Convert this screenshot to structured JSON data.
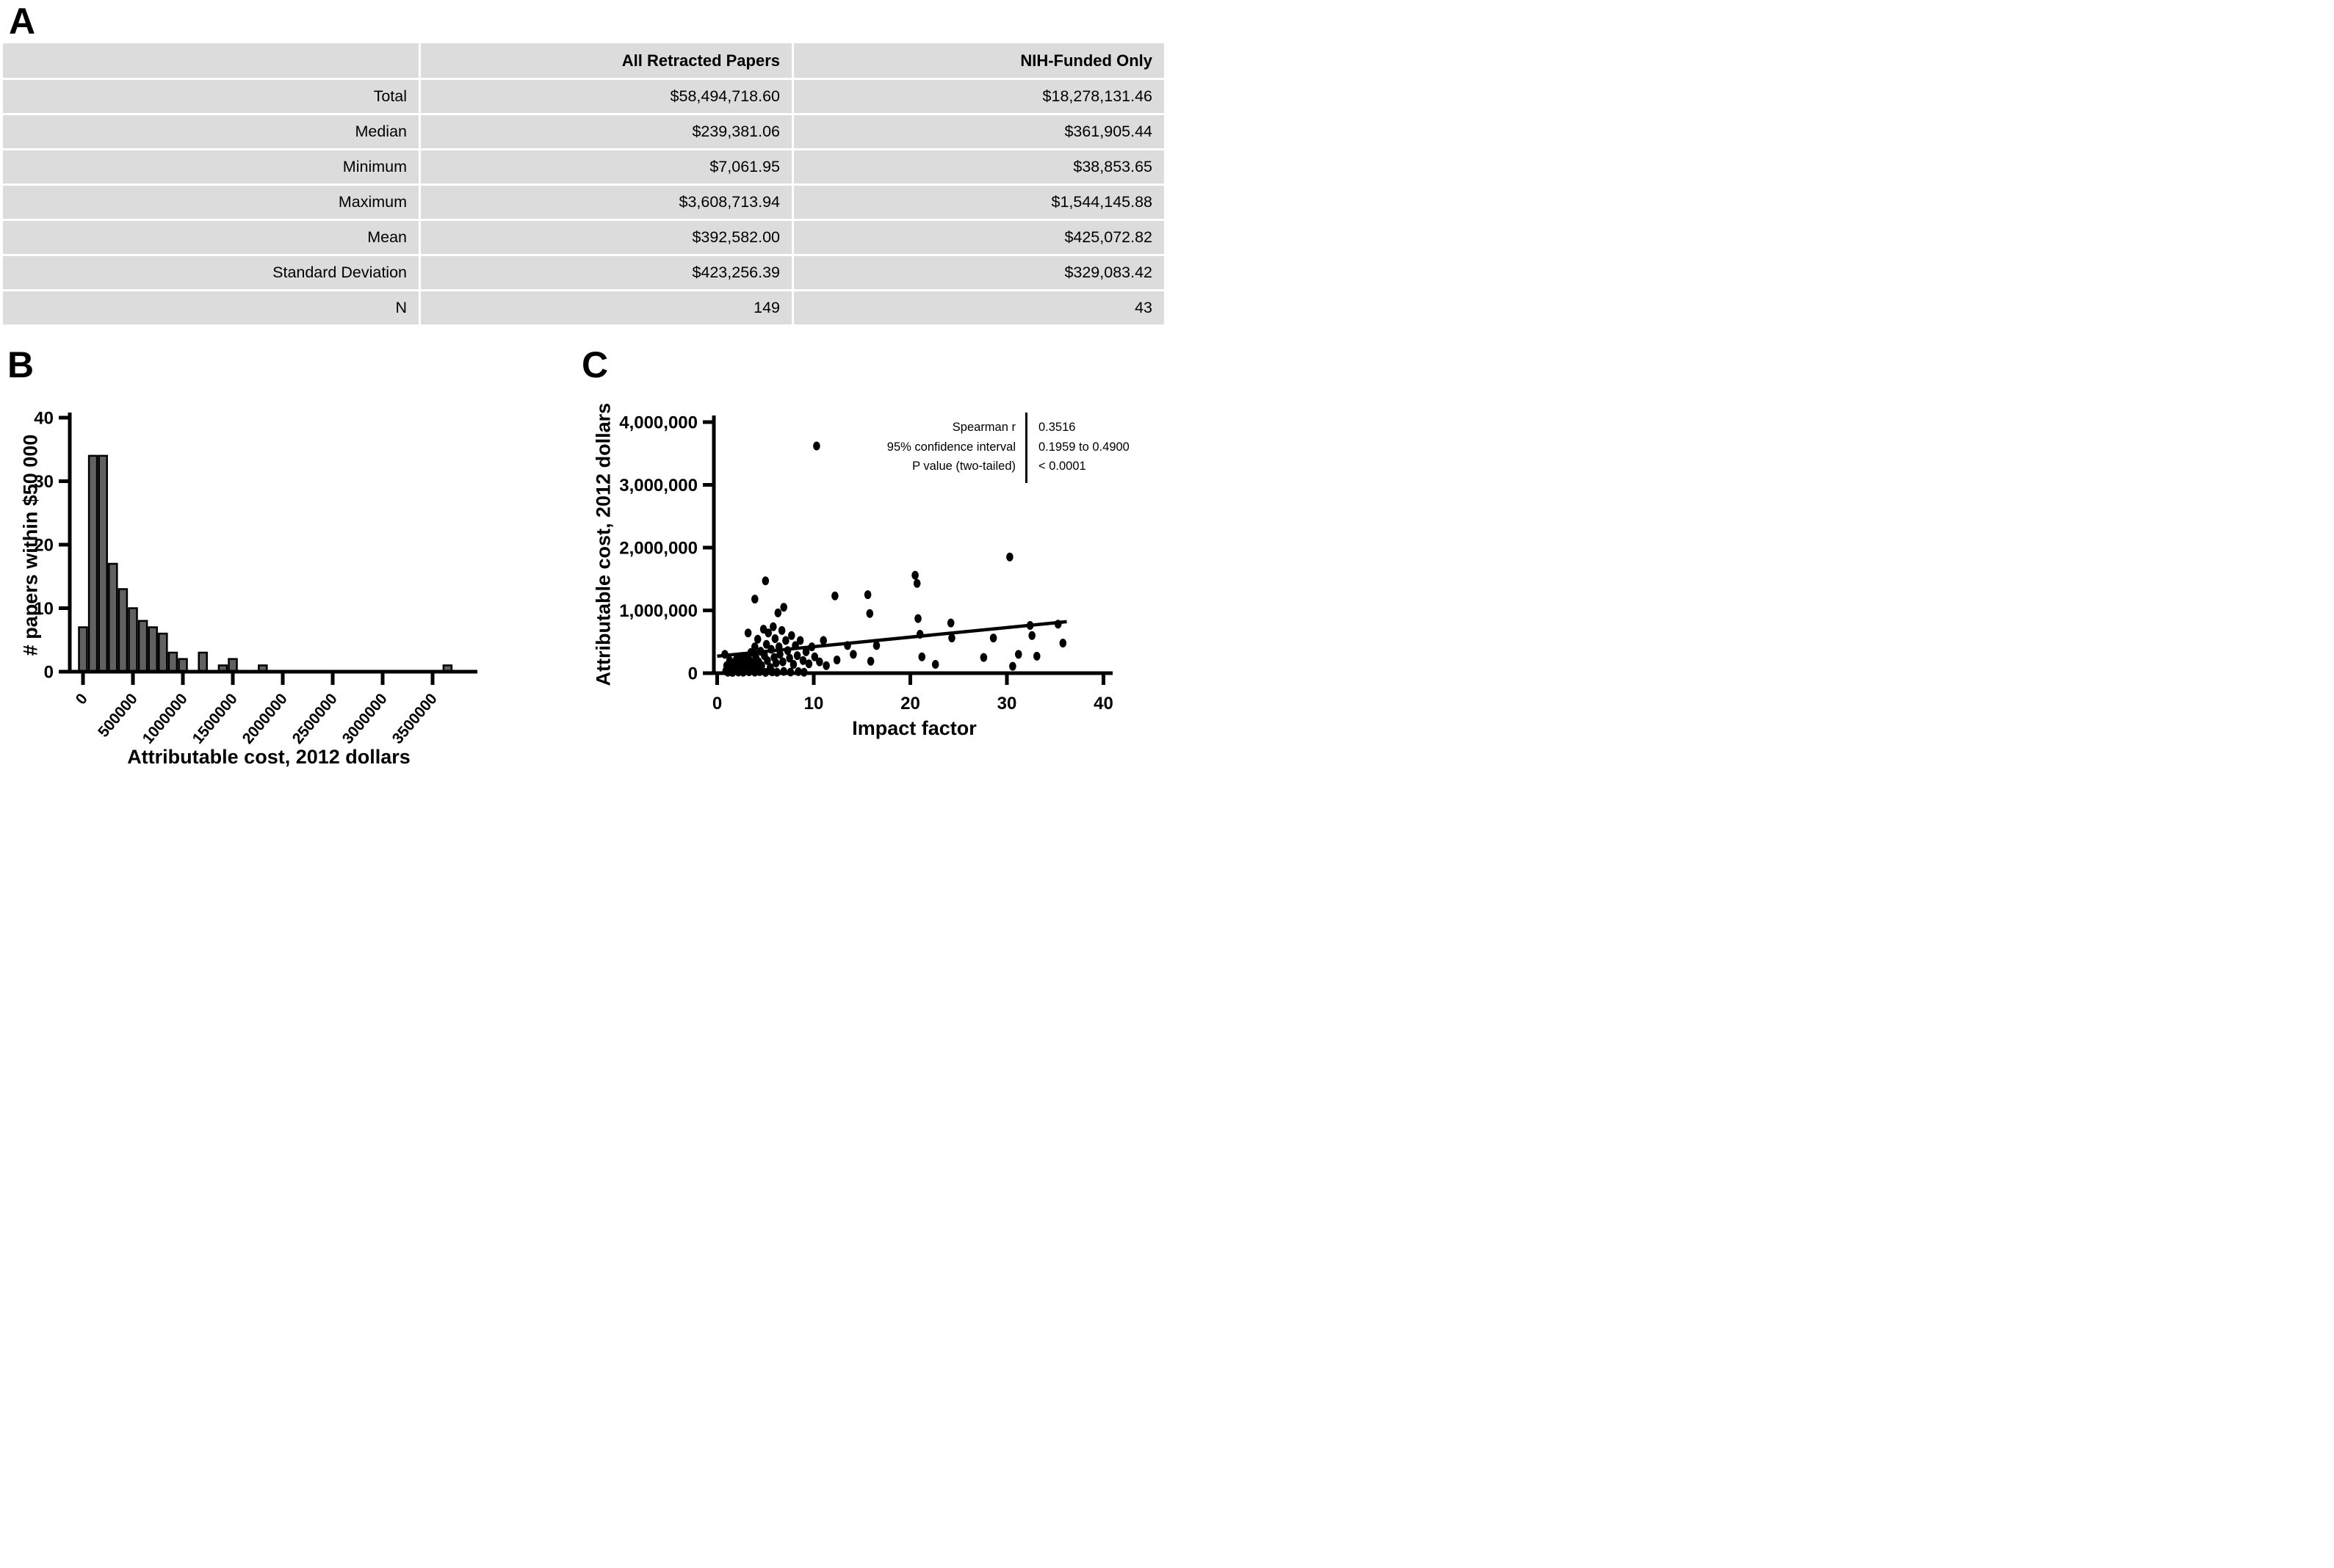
{
  "figure": {
    "panel_letters": {
      "a": "A",
      "b": "B",
      "c": "C"
    }
  },
  "chart_data": [
    {
      "id": "A",
      "type": "table",
      "columns": [
        "",
        "All Retracted Papers",
        "NIH-Funded Only"
      ],
      "rows": [
        {
          "label": "Total",
          "all": "$58,494,718.60",
          "nih": "$18,278,131.46"
        },
        {
          "label": "Median",
          "all": "$239,381.06",
          "nih": "$361,905.44"
        },
        {
          "label": "Minimum",
          "all": "$7,061.95",
          "nih": "$38,853.65"
        },
        {
          "label": "Maximum",
          "all": "$3,608,713.94",
          "nih": "$1,544,145.88"
        },
        {
          "label": "Mean",
          "all": "$392,582.00",
          "nih": "$425,072.82"
        },
        {
          "label": "Standard Deviation",
          "all": "$423,256.39",
          "nih": "$329,083.42"
        },
        {
          "label": "N",
          "all": "149",
          "nih": "43"
        }
      ]
    },
    {
      "id": "B",
      "type": "bar",
      "title": "",
      "xlabel": "Attributable cost, 2012 dollars",
      "ylabel": "# papers within $50 000",
      "xlim": [
        0,
        3900000
      ],
      "ylim": [
        0,
        40
      ],
      "grid": false,
      "x_ticks": [
        0,
        500000,
        1000000,
        1500000,
        2000000,
        2500000,
        3000000,
        3500000
      ],
      "x_tick_labels": [
        "0",
        "500000",
        "1000000",
        "1500000",
        "2000000",
        "2500000",
        "3000000",
        "3500000"
      ],
      "y_ticks": [
        0,
        10,
        20,
        30,
        40
      ],
      "bar_fill": "#616161",
      "bar_outline": "#000000",
      "bars": [
        {
          "x": 0,
          "count": 7
        },
        {
          "x": 100000,
          "count": 34
        },
        {
          "x": 200000,
          "count": 34
        },
        {
          "x": 300000,
          "count": 17
        },
        {
          "x": 400000,
          "count": 13
        },
        {
          "x": 500000,
          "count": 10
        },
        {
          "x": 600000,
          "count": 8
        },
        {
          "x": 700000,
          "count": 7
        },
        {
          "x": 800000,
          "count": 6
        },
        {
          "x": 900000,
          "count": 3
        },
        {
          "x": 1000000,
          "count": 2
        },
        {
          "x": 1200000,
          "count": 3
        },
        {
          "x": 1400000,
          "count": 1
        },
        {
          "x": 1500000,
          "count": 2
        },
        {
          "x": 1800000,
          "count": 1
        },
        {
          "x": 3650000,
          "count": 1
        }
      ],
      "total_n": 149
    },
    {
      "id": "C",
      "type": "scatter",
      "title": "",
      "xlabel": "Impact factor",
      "ylabel": "Attributable cost, 2012 dollars",
      "xlim": [
        0,
        41
      ],
      "ylim": [
        0,
        4000000
      ],
      "grid": false,
      "x_ticks": [
        0,
        10,
        20,
        30,
        40
      ],
      "y_ticks": [
        0,
        1000000,
        2000000,
        3000000,
        4000000
      ],
      "y_tick_labels": [
        "0",
        "1,000,000",
        "2,000,000",
        "3,000,000",
        "4,000,000"
      ],
      "point_color": "#000000",
      "trend_line": {
        "x1": 0,
        "y1": 270000,
        "x2": 36.2,
        "y2": 820000
      },
      "stats": [
        {
          "label": "Spearman r",
          "value": "0.3516"
        },
        {
          "label": "95% confidence interval",
          "value": "0.1959 to 0.4900"
        },
        {
          "label": "P value (two-tailed)",
          "value": "< 0.0001"
        }
      ],
      "points": [
        [
          0.8,
          300000
        ],
        [
          0.9,
          35000
        ],
        [
          1.0,
          120000
        ],
        [
          1.1,
          15000
        ],
        [
          1.2,
          45000
        ],
        [
          1.3,
          200000
        ],
        [
          1.4,
          55000
        ],
        [
          1.5,
          80000
        ],
        [
          1.5,
          20000
        ],
        [
          1.6,
          12000
        ],
        [
          1.7,
          150000
        ],
        [
          1.8,
          60000
        ],
        [
          2.0,
          220000
        ],
        [
          2.0,
          100000
        ],
        [
          2.1,
          30000
        ],
        [
          2.2,
          170000
        ],
        [
          2.2,
          18000
        ],
        [
          2.3,
          60000
        ],
        [
          2.4,
          240000
        ],
        [
          2.5,
          120000
        ],
        [
          2.6,
          40000
        ],
        [
          2.7,
          14000
        ],
        [
          2.8,
          190000
        ],
        [
          2.8,
          90000
        ],
        [
          3.0,
          260000
        ],
        [
          3.0,
          140000
        ],
        [
          3.1,
          55000
        ],
        [
          3.2,
          640000
        ],
        [
          3.3,
          210000
        ],
        [
          3.3,
          22000
        ],
        [
          3.4,
          100000
        ],
        [
          3.5,
          330000
        ],
        [
          3.6,
          160000
        ],
        [
          3.7,
          70000
        ],
        [
          3.9,
          1180000
        ],
        [
          3.9,
          420000
        ],
        [
          3.9,
          16000
        ],
        [
          4.0,
          250000
        ],
        [
          4.0,
          90000
        ],
        [
          4.2,
          540000
        ],
        [
          4.3,
          180000
        ],
        [
          4.4,
          25000
        ],
        [
          4.5,
          350000
        ],
        [
          4.6,
          120000
        ],
        [
          4.8,
          700000
        ],
        [
          4.9,
          280000
        ],
        [
          5.0,
          1470000
        ],
        [
          5.0,
          12000
        ],
        [
          5.1,
          460000
        ],
        [
          5.2,
          200000
        ],
        [
          5.3,
          640000
        ],
        [
          5.5,
          90000
        ],
        [
          5.6,
          380000
        ],
        [
          5.7,
          20000
        ],
        [
          5.8,
          740000
        ],
        [
          5.9,
          250000
        ],
        [
          6.0,
          550000
        ],
        [
          6.1,
          160000
        ],
        [
          6.2,
          15000
        ],
        [
          6.3,
          960000
        ],
        [
          6.4,
          420000
        ],
        [
          6.5,
          300000
        ],
        [
          6.7,
          680000
        ],
        [
          6.8,
          180000
        ],
        [
          6.9,
          1050000
        ],
        [
          6.9,
          28000
        ],
        [
          7.1,
          520000
        ],
        [
          7.3,
          360000
        ],
        [
          7.5,
          240000
        ],
        [
          7.6,
          18000
        ],
        [
          7.7,
          600000
        ],
        [
          7.9,
          140000
        ],
        [
          8.1,
          440000
        ],
        [
          8.3,
          280000
        ],
        [
          8.4,
          24000
        ],
        [
          8.6,
          520000
        ],
        [
          8.9,
          200000
        ],
        [
          9.0,
          14000
        ],
        [
          9.2,
          340000
        ],
        [
          9.5,
          150000
        ],
        [
          9.8,
          420000
        ],
        [
          10.1,
          260000
        ],
        [
          10.3,
          3620000
        ],
        [
          10.6,
          180000
        ],
        [
          11.0,
          520000
        ],
        [
          11.3,
          120000
        ],
        [
          12.2,
          1230000
        ],
        [
          12.4,
          210000
        ],
        [
          13.5,
          440000
        ],
        [
          14.1,
          300000
        ],
        [
          15.6,
          1250000
        ],
        [
          15.8,
          950000
        ],
        [
          15.9,
          190000
        ],
        [
          16.5,
          440000
        ],
        [
          20.5,
          1560000
        ],
        [
          20.7,
          1430000
        ],
        [
          20.8,
          870000
        ],
        [
          21.0,
          620000
        ],
        [
          21.2,
          260000
        ],
        [
          22.6,
          140000
        ],
        [
          24.2,
          800000
        ],
        [
          24.3,
          560000
        ],
        [
          27.6,
          250000
        ],
        [
          28.6,
          560000
        ],
        [
          30.3,
          1850000
        ],
        [
          30.6,
          110000
        ],
        [
          31.2,
          300000
        ],
        [
          32.4,
          760000
        ],
        [
          32.6,
          600000
        ],
        [
          33.1,
          270000
        ],
        [
          35.3,
          780000
        ],
        [
          35.8,
          480000
        ]
      ]
    }
  ]
}
